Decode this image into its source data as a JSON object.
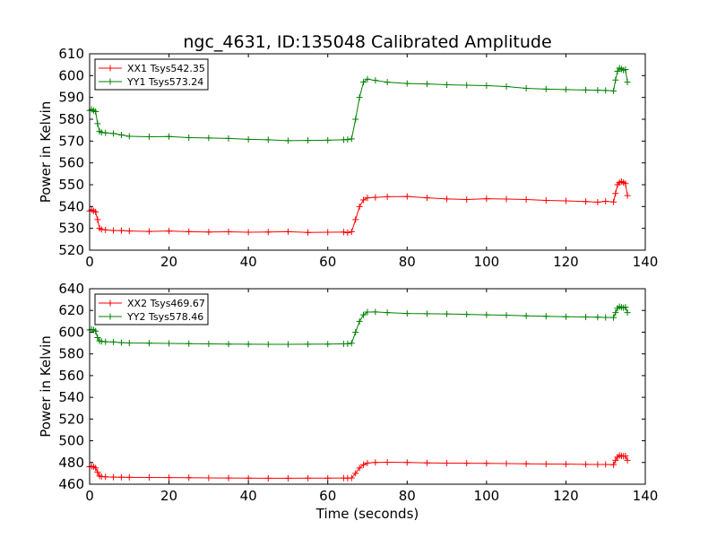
{
  "figure": {
    "title": "ngc_4631, ID:135048 Calibrated Amplitude",
    "xlabel": "Time (seconds)"
  },
  "chart_data": [
    {
      "type": "line",
      "title": "ngc_4631, ID:135048 Calibrated Amplitude",
      "xlabel": "",
      "ylabel": "Power in Kelvin",
      "xlim": [
        0,
        140
      ],
      "ylim": [
        520,
        610
      ],
      "xticks": [
        0,
        20,
        40,
        60,
        80,
        100,
        120,
        140
      ],
      "yticks": [
        520,
        530,
        540,
        550,
        560,
        570,
        580,
        590,
        600,
        610
      ],
      "grid": false,
      "legend": {
        "position": "top-left"
      },
      "marker": "+",
      "series": [
        {
          "name": "XX1 Tsys542.35",
          "color": "#ff0000",
          "x": [
            0,
            0.5,
            1,
            1.5,
            2,
            2.5,
            3,
            4,
            6,
            8,
            10,
            15,
            20,
            25,
            30,
            35,
            40,
            45,
            50,
            55,
            60,
            64,
            65,
            66,
            67,
            68,
            69,
            70,
            72,
            75,
            80,
            85,
            90,
            95,
            100,
            105,
            110,
            115,
            120,
            125,
            128,
            130,
            132,
            132.5,
            133,
            133.5,
            134,
            134.5,
            135,
            135.5
          ],
          "y": [
            538,
            538.5,
            538,
            537.5,
            534,
            530,
            529.5,
            529.3,
            529,
            529,
            528.8,
            528.6,
            528.8,
            528.5,
            528.3,
            528.4,
            528.2,
            528.3,
            528.5,
            528.1,
            528.2,
            528.3,
            528,
            528.4,
            534,
            540,
            543,
            544,
            544.2,
            544.5,
            544.6,
            544,
            543.5,
            543.2,
            543.6,
            543.4,
            543.2,
            542.8,
            542.6,
            542.3,
            542,
            542.4,
            542.1,
            546,
            550,
            551,
            551.5,
            551,
            550.5,
            545
          ]
        },
        {
          "name": "YY1 Tsys573.24",
          "color": "#008000",
          "x": [
            0,
            0.5,
            1,
            1.5,
            2,
            2.5,
            3,
            4,
            6,
            8,
            10,
            15,
            20,
            25,
            30,
            35,
            40,
            45,
            50,
            55,
            60,
            64,
            65,
            66,
            67,
            68,
            69,
            70,
            72,
            75,
            80,
            85,
            90,
            95,
            100,
            105,
            110,
            115,
            120,
            125,
            128,
            130,
            132,
            132.5,
            133,
            133.5,
            134,
            134.5,
            135,
            135.5
          ],
          "y": [
            584,
            584.5,
            584,
            583.5,
            578,
            574.5,
            574,
            573.8,
            573.5,
            572.8,
            572.2,
            572,
            572.1,
            571.6,
            571.4,
            571.2,
            570.8,
            570.6,
            570.2,
            570.3,
            570.4,
            570.6,
            570.7,
            571,
            580,
            590,
            597,
            598.4,
            597.8,
            597,
            596.4,
            596.2,
            595.8,
            595.6,
            595.4,
            595,
            594.2,
            593.8,
            593.6,
            593.4,
            593.3,
            593.2,
            593,
            598,
            602,
            603.5,
            603,
            602.5,
            602.8,
            597
          ]
        }
      ]
    },
    {
      "type": "line",
      "title": "",
      "xlabel": "Time (seconds)",
      "ylabel": "Power in Kelvin",
      "xlim": [
        0,
        140
      ],
      "ylim": [
        460,
        640
      ],
      "xticks": [
        0,
        20,
        40,
        60,
        80,
        100,
        120,
        140
      ],
      "yticks": [
        460,
        480,
        500,
        520,
        540,
        560,
        580,
        600,
        620,
        640
      ],
      "grid": false,
      "legend": {
        "position": "top-left"
      },
      "marker": "+",
      "series": [
        {
          "name": "XX2 Tsys469.67",
          "color": "#ff0000",
          "x": [
            0,
            0.5,
            1,
            1.5,
            2,
            2.5,
            3,
            4,
            6,
            8,
            10,
            15,
            20,
            25,
            30,
            35,
            40,
            45,
            50,
            55,
            60,
            64,
            65,
            66,
            67,
            68,
            69,
            70,
            72,
            75,
            80,
            85,
            90,
            95,
            100,
            105,
            110,
            115,
            120,
            125,
            128,
            130,
            132,
            132.5,
            133,
            133.5,
            134,
            134.5,
            135,
            135.5
          ],
          "y": [
            476,
            476.5,
            476,
            475,
            471,
            467.5,
            467,
            466.8,
            466.5,
            466.4,
            466.3,
            466.2,
            466.1,
            466,
            465.8,
            465.7,
            465.6,
            465.5,
            465.5,
            465.6,
            465.6,
            465.7,
            465.6,
            465.8,
            470,
            475,
            478,
            479.5,
            480,
            480.2,
            480,
            479.6,
            479.4,
            479.3,
            479.2,
            479,
            478.8,
            478.6,
            478.5,
            478.3,
            478.2,
            478.2,
            478,
            482,
            485,
            486.5,
            486,
            485.8,
            486,
            482
          ]
        },
        {
          "name": "YY2 Tsys578.46",
          "color": "#008000",
          "x": [
            0,
            0.5,
            1,
            1.5,
            2,
            2.5,
            3,
            4,
            6,
            8,
            10,
            15,
            20,
            25,
            30,
            35,
            40,
            45,
            50,
            55,
            60,
            64,
            65,
            66,
            67,
            68,
            69,
            70,
            72,
            75,
            80,
            85,
            90,
            95,
            100,
            105,
            110,
            115,
            120,
            125,
            128,
            130,
            132,
            132.5,
            133,
            133.5,
            134,
            134.5,
            135,
            135.5
          ],
          "y": [
            602,
            602.5,
            602,
            601,
            595,
            592,
            591.5,
            591.2,
            591,
            590.4,
            590,
            589.8,
            589.6,
            589.4,
            589.2,
            589,
            588.9,
            588.8,
            588.8,
            588.9,
            589,
            589.2,
            589.3,
            589.8,
            600,
            610,
            616,
            618.5,
            618.6,
            618,
            617.2,
            617,
            616.8,
            616.4,
            616,
            615.6,
            615,
            614.6,
            614.2,
            614,
            613.8,
            613.6,
            613.5,
            618,
            622,
            623.5,
            623,
            622.5,
            623,
            618
          ]
        }
      ]
    }
  ]
}
